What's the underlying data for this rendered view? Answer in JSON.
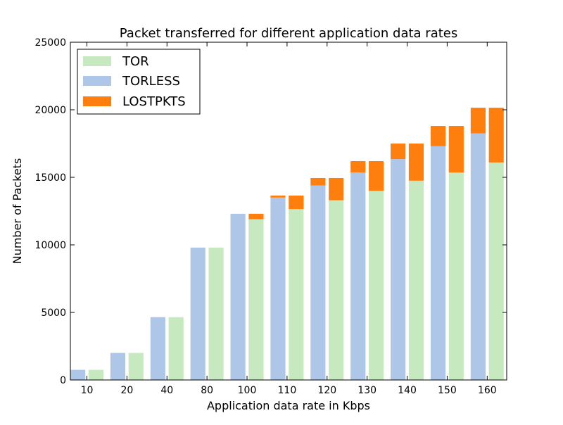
{
  "chart_data": {
    "type": "bar",
    "title": "Packet transferred for different application data rates",
    "xlabel": "Application data rate in Kbps",
    "ylabel": "Number of Packets",
    "ylim": [
      0,
      25000
    ],
    "yticks": [
      0,
      5000,
      10000,
      15000,
      20000,
      25000
    ],
    "categories": [
      "10",
      "20",
      "40",
      "80",
      "100",
      "110",
      "120",
      "130",
      "140",
      "150",
      "160"
    ],
    "series": [
      {
        "name": "TORLESS",
        "values": [
          750,
          2000,
          4650,
          9800,
          12300,
          13500,
          14400,
          15350,
          16350,
          17300,
          18250
        ]
      },
      {
        "name": "LOSTPKTS",
        "stacked_on": "TORLESS",
        "values": [
          0,
          0,
          0,
          0,
          0,
          150,
          550,
          850,
          1150,
          1500,
          1900
        ]
      },
      {
        "name": "TOR",
        "values": [
          750,
          2000,
          4650,
          9800,
          11900,
          12650,
          13300,
          14000,
          14750,
          15350,
          16100
        ]
      },
      {
        "name": "LOSTPKTS",
        "stacked_on": "TOR",
        "values": [
          0,
          0,
          0,
          0,
          400,
          1000,
          1650,
          2200,
          2750,
          3450,
          4050
        ]
      }
    ],
    "legend": {
      "placement": "top-left",
      "entries": [
        "TOR",
        "TORLESS",
        "LOSTPKTS"
      ]
    },
    "colors": {
      "TOR": "#c7e9c0",
      "TORLESS": "#aec7e8",
      "LOSTPKTS": "#ff7f0e"
    },
    "grid": false
  }
}
